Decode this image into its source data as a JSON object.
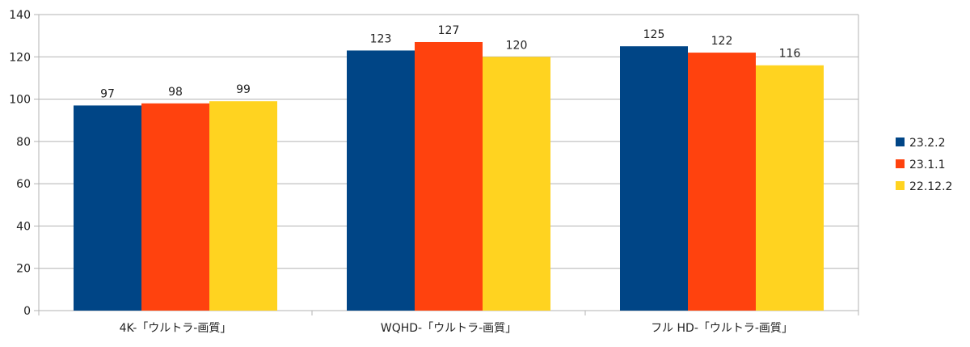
{
  "chart_data": {
    "type": "bar",
    "categories": [
      "4K-「ウルトラ-画質」",
      "WQHD-「ウルトラ-画質」",
      "フル HD-「ウルトラ-画質」"
    ],
    "series": [
      {
        "name": "23.2.2",
        "values": [
          97,
          123,
          125
        ],
        "color": "#004586"
      },
      {
        "name": "23.1.1",
        "values": [
          98,
          127,
          122
        ],
        "color": "#ff420e"
      },
      {
        "name": "22.12.2",
        "values": [
          99,
          120,
          116
        ],
        "color": "#ffd320"
      }
    ],
    "ylim": [
      0,
      140
    ],
    "yticks": [
      0,
      20,
      40,
      60,
      80,
      100,
      120,
      140
    ],
    "grid": true,
    "legend_position": "right",
    "data_labels": true,
    "title": "",
    "xlabel": "",
    "ylabel": ""
  }
}
